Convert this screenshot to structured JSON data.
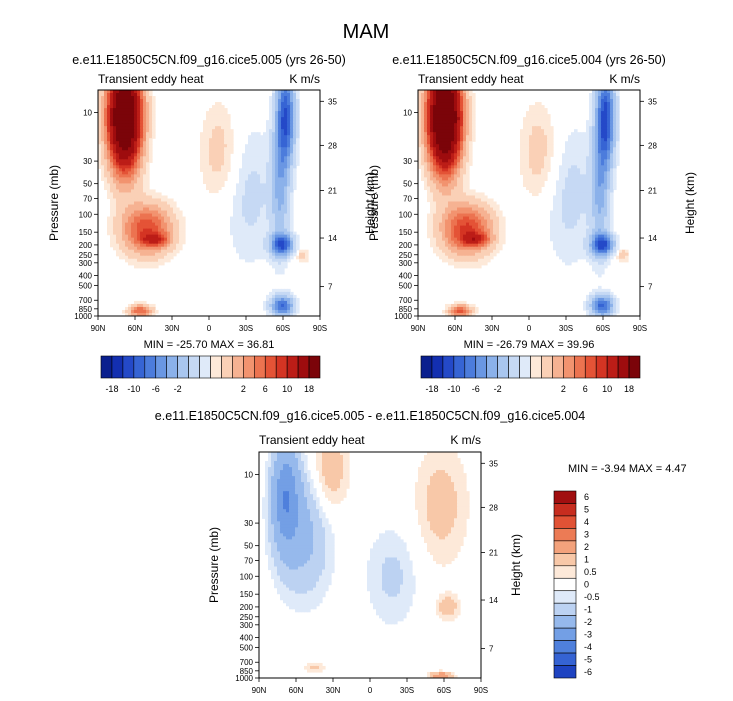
{
  "figure": {
    "season": "MAM",
    "colors": {
      "neg": [
        "#dfeaf9",
        "#c6d9f4",
        "#a9c6ef",
        "#8bb1ea",
        "#6a97e3",
        "#4c7cdc",
        "#3664d4",
        "#2449c8",
        "#132fb0",
        "#0a1f8e"
      ],
      "pos": [
        "#fde9d9",
        "#fad0b6",
        "#f6b292",
        "#f2936f",
        "#ec7350",
        "#e45336",
        "#d43423",
        "#bc1d17",
        "#9e0c0e",
        "#7b0409"
      ],
      "diffNeg": [
        "#dfeaf9",
        "#bcd2f2",
        "#96b9ec",
        "#739fe5",
        "#4f80dc",
        "#3563d3",
        "#1e43c1"
      ],
      "diffPos": [
        "#fde9d9",
        "#f8c8a8",
        "#f3a27c",
        "#ec7b55",
        "#e15235",
        "#c72d1f",
        "#a10f10"
      ]
    }
  },
  "chart_data": [
    {
      "type": "heatmap",
      "title": "e.e11.E1850C5CN.f09_g16.cice5.005 (yrs 26-50)",
      "left_label": "Transient eddy heat",
      "right_label": "K m/s",
      "ylabel": "Pressure (mb)",
      "ylabel_right": "Height (km)",
      "x_ticks": [
        "90N",
        "60N",
        "30N",
        "0",
        "30S",
        "60S",
        "90S"
      ],
      "y_ticks": [
        "10",
        "30",
        "50",
        "70",
        "100",
        "150",
        "200",
        "250",
        "300",
        "400",
        "500",
        "700",
        "850",
        "1000"
      ],
      "height_ticks": [
        "35",
        "28",
        "21",
        "14",
        "7"
      ],
      "stats": "MIN = -25.70   MAX = 36.81",
      "colorbar_labels": [
        "-18",
        "-10",
        "-6",
        "-2",
        "2",
        "6",
        "10",
        "18"
      ]
    },
    {
      "type": "heatmap",
      "title": "e.e11.E1850C5CN.f09_g16.cice5.004 (yrs 26-50)",
      "left_label": "Transient eddy heat",
      "right_label": "K m/s",
      "ylabel": "Pressure (mb)",
      "ylabel_right": "Height (km)",
      "x_ticks": [
        "90N",
        "60N",
        "30N",
        "0",
        "30S",
        "60S",
        "90S"
      ],
      "y_ticks": [
        "10",
        "30",
        "50",
        "70",
        "100",
        "150",
        "200",
        "250",
        "300",
        "400",
        "500",
        "700",
        "850",
        "1000"
      ],
      "height_ticks": [
        "35",
        "28",
        "21",
        "14",
        "7"
      ],
      "stats": "MIN = -26.79   MAX = 39.96",
      "colorbar_labels": [
        "-18",
        "-10",
        "-6",
        "-2",
        "2",
        "6",
        "10",
        "18"
      ]
    },
    {
      "type": "heatmap",
      "title": "e.e11.E1850C5CN.f09_g16.cice5.005 - e.e11.E1850C5CN.f09_g16.cice5.004",
      "left_label": "Transient eddy heat",
      "right_label": "K m/s",
      "ylabel": "Pressure (mb)",
      "ylabel_right": "Height (km)",
      "x_ticks": [
        "90N",
        "60N",
        "30N",
        "0",
        "30S",
        "60S",
        "90S"
      ],
      "y_ticks": [
        "10",
        "30",
        "50",
        "70",
        "100",
        "150",
        "200",
        "250",
        "300",
        "400",
        "500",
        "700",
        "850",
        "1000"
      ],
      "height_ticks": [
        "35",
        "28",
        "21",
        "14",
        "7"
      ],
      "stats": "MIN =  -3.94   MAX =  4.47",
      "colorbar_labels": [
        "6",
        "5",
        "4",
        "3",
        "2",
        "1",
        "0.5",
        "0",
        "-0.5",
        "-1",
        "-2",
        "-3",
        "-4",
        "-5",
        "-6"
      ]
    }
  ]
}
